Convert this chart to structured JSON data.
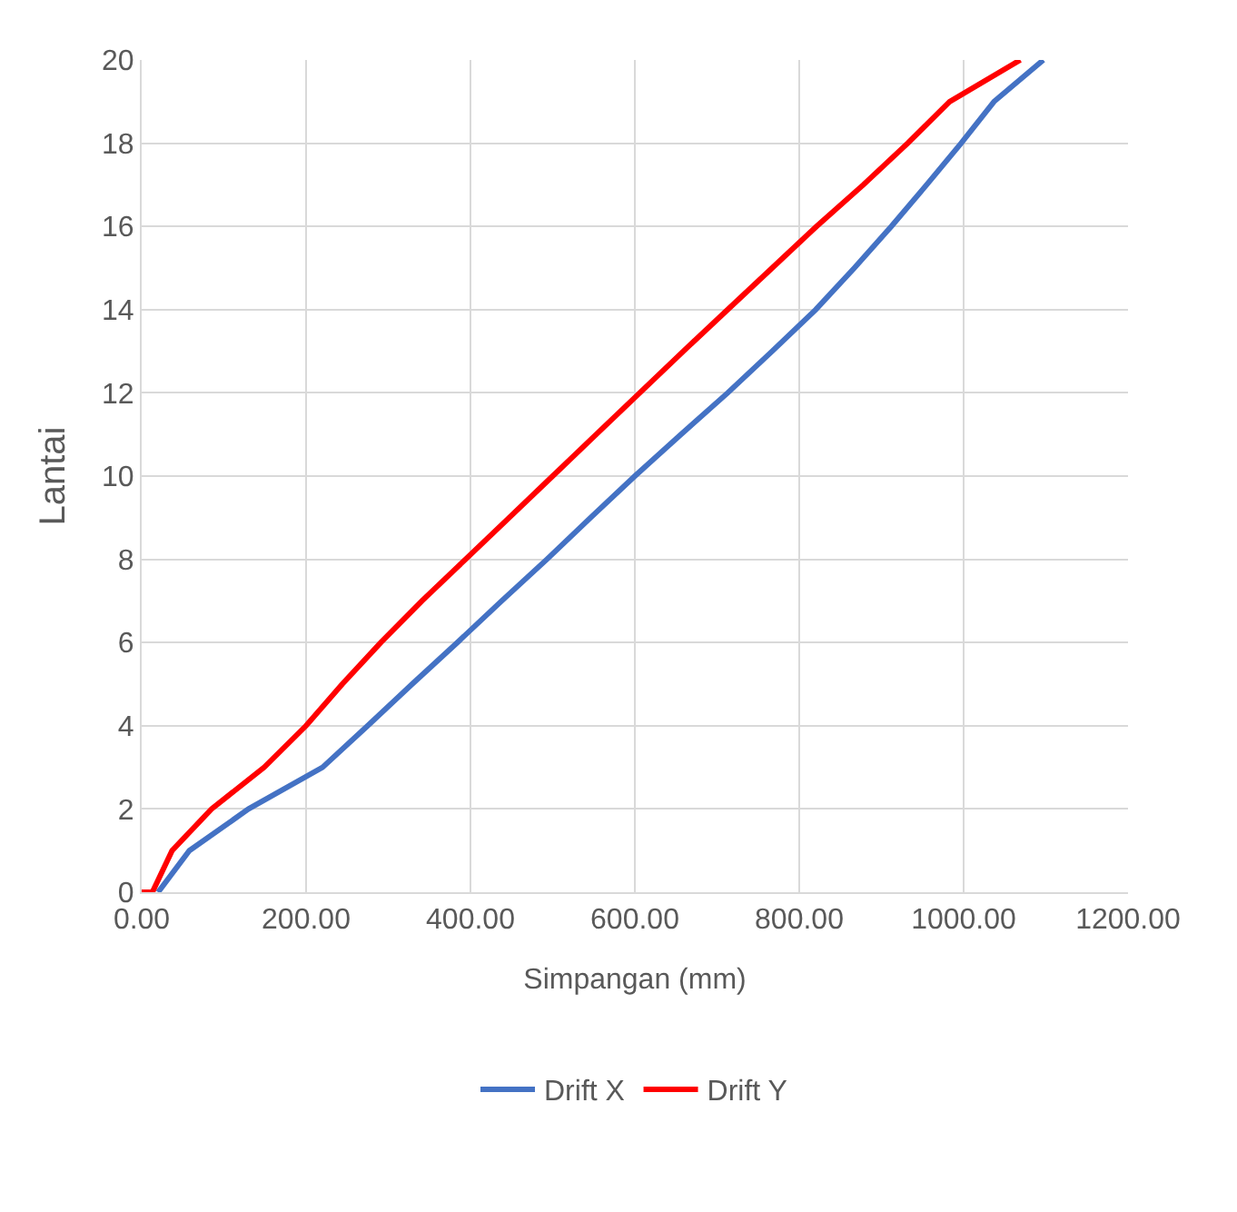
{
  "chart_data": {
    "type": "line",
    "xlabel": "Simpangan (mm)",
    "ylabel": "Lantai",
    "xlim": [
      0,
      1200
    ],
    "xticks": [
      {
        "value": 0,
        "label": "0.00"
      },
      {
        "value": 200,
        "label": "200.00"
      },
      {
        "value": 400,
        "label": "400.00"
      },
      {
        "value": 600,
        "label": "600.00"
      },
      {
        "value": 800,
        "label": "800.00"
      },
      {
        "value": 1000,
        "label": "1000.00"
      },
      {
        "value": 1200,
        "label": "1200.00"
      }
    ],
    "ylim": [
      0,
      20
    ],
    "yticks": [
      0,
      2,
      4,
      6,
      8,
      10,
      12,
      14,
      16,
      18,
      20
    ],
    "grid": true,
    "legend": "bottom",
    "marker": "none",
    "line_style": "solid",
    "series": [
      {
        "name": "Drift X",
        "color": "#4472c4",
        "x": [
          20,
          58,
          130,
          220,
          275,
          329,
          384,
          438,
          493,
          546,
          600,
          656,
          713,
          767,
          820,
          867,
          912,
          955,
          997,
          1037,
          1097
        ],
        "values": [
          0,
          1,
          2,
          3,
          4,
          5,
          6,
          7,
          8,
          9,
          10,
          11,
          12,
          13,
          14,
          15,
          16,
          17,
          18,
          19,
          20
        ]
      },
      {
        "name": "Drift Y",
        "color": "#ff0000",
        "x": [
          0,
          13,
          37,
          85,
          149,
          200,
          244,
          291,
          341,
          394,
          447,
          500,
          553,
          606,
          659,
          713,
          767,
          821,
          878,
          932,
          983,
          1069
        ],
        "values": [
          0,
          0,
          1,
          2,
          3,
          4,
          5,
          6,
          7,
          8,
          9,
          10,
          11,
          12,
          13,
          14,
          15,
          16,
          17,
          18,
          19,
          20
        ]
      }
    ]
  }
}
